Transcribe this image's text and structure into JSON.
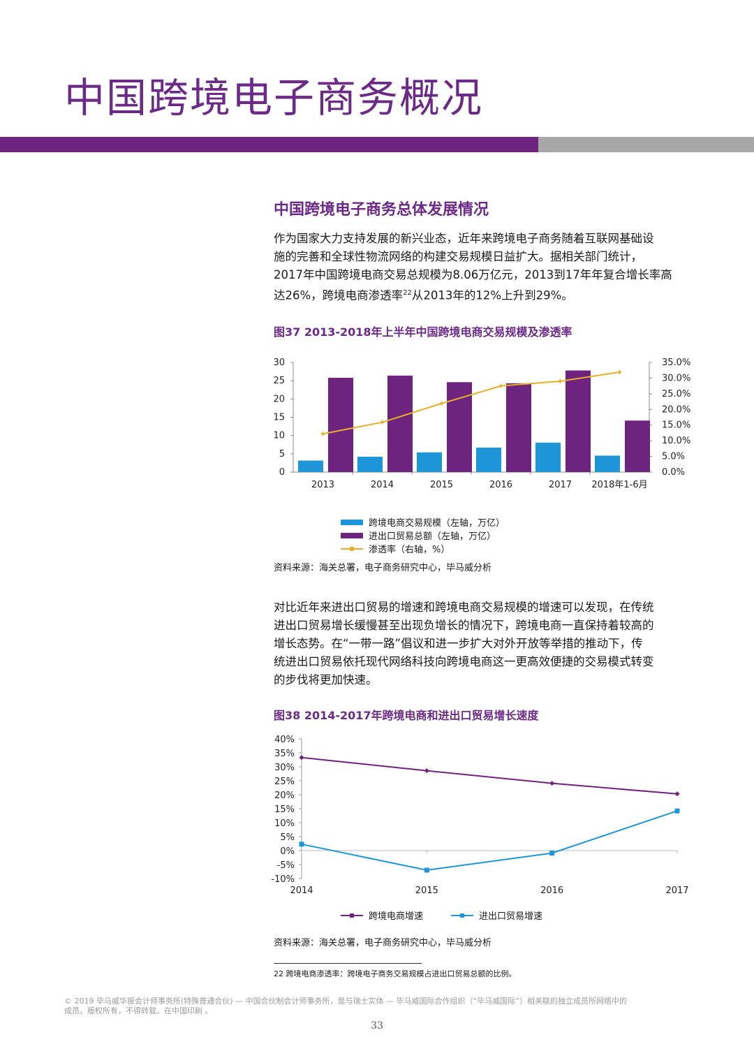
{
  "header": {
    "title": "中国跨境电子商务概况"
  },
  "section": {
    "heading": "中国跨境电子商务总体发展情况",
    "para1_lines": [
      "作为国家大力支持发展的新兴业态，近年来跨境电子商务随着互联网基础设",
      "施的完善和全球性物流网络的构建交易规模日益扩大。据相关部门统计，",
      "2017年中国跨境电商交易总规模为8.06万亿元，2013到17年年复合增长率高"
    ],
    "para1_last_before": "达26%，跨境电商渗透率",
    "para1_sup": "22",
    "para1_last_after": "从2013年的12%上升到29%。",
    "para2_lines": [
      "对比近年来进出口贸易的增速和跨境电商交易规模的增速可以发现，在传统",
      "进出口贸易增长缓慢甚至出现负增长的情况下，跨境电商一直保持着较高的",
      "增长态势。在“一带一路”倡议和进一步扩大对外开放等举措的推动下，传",
      "统进出口贸易依托现代网络科技向跨境电商这一更高效便捷的交易模式转变",
      "的步伐将更加快速。"
    ]
  },
  "fig37": {
    "title": "图37 2013-2018年上半年中国跨境电商交易规模及渗透率",
    "source": "资料来源：海关总署，电子商务研究中心，毕马威分析",
    "legend": [
      "跨境电商交易规模（左轴，万亿）",
      "进出口贸易总额（左轴，万亿）",
      "渗透率（右轴，%）"
    ]
  },
  "fig38": {
    "title": "图38 2014-2017年跨境电商和进出口贸易增长速度",
    "source": "资料来源：海关总署，电子商务研究中心，毕马威分析",
    "legend": [
      "跨境电商增速",
      "进出口贸易增速"
    ]
  },
  "footnote": "22  跨境电商渗透率：跨境电子商务交易规模占进出口贸易总额的比例。",
  "copyright_lines": [
    "© 2019 毕马威华振会计师事务所(特殊普通合伙) — 中国合伙制会计师事务所，是与瑞士实体 — 毕马威国际合作组织（“毕马威国际”）相关联的独立成员所网络中的",
    "成员。版权所有，不得转载。在中国印刷 。"
  ],
  "page_number": "33",
  "colors": {
    "purple": "#6e237f",
    "blue": "#1e95d6",
    "gold": "#e5b02a",
    "gray": "#a7a7a7"
  },
  "chart_data": [
    {
      "type": "bar",
      "title": "图37 2013-2018年上半年中国跨境电商交易规模及渗透率",
      "categories": [
        "2013",
        "2014",
        "2015",
        "2016",
        "2017",
        "2018年1-6月"
      ],
      "series": [
        {
          "name": "跨境电商交易规模（左轴，万亿）",
          "axis": "left",
          "type": "bar",
          "color": "#1e95d6",
          "values": [
            3.15,
            4.2,
            5.4,
            6.7,
            8.06,
            4.5
          ]
        },
        {
          "name": "进出口贸易总额（左轴，万亿）",
          "axis": "left",
          "type": "bar",
          "color": "#6e237f",
          "values": [
            25.8,
            26.4,
            24.6,
            24.3,
            27.8,
            14.1
          ]
        },
        {
          "name": "渗透率（右轴，%）",
          "axis": "right",
          "type": "line",
          "color": "#e5b02a",
          "values": [
            12.2,
            15.9,
            21.9,
            27.5,
            29.0,
            31.9
          ]
        }
      ],
      "y_left": {
        "min": 0,
        "max": 30,
        "ticks": [
          "0",
          "5",
          "10",
          "15",
          "20",
          "25",
          "30"
        ]
      },
      "y_right": {
        "min": 0,
        "max": 35,
        "ticks": [
          "0.0%",
          "5.0%",
          "10.0%",
          "15.0%",
          "20.0%",
          "25.0%",
          "30.0%",
          "35.0%"
        ]
      },
      "legend_position": "bottom"
    },
    {
      "type": "line",
      "title": "图38 2014-2017年跨境电商和进出口贸易增长速度",
      "categories": [
        "2014",
        "2015",
        "2016",
        "2017"
      ],
      "series": [
        {
          "name": "跨境电商增速",
          "color": "#6e237f",
          "marker": "diamond",
          "values": [
            33.3,
            28.6,
            24.1,
            20.3
          ]
        },
        {
          "name": "进出口贸易增速",
          "color": "#1e95d6",
          "marker": "square",
          "values": [
            2.3,
            -7.0,
            -0.9,
            14.2
          ]
        }
      ],
      "y": {
        "min": -10,
        "max": 40,
        "ticks": [
          "-10%",
          "-5%",
          "0%",
          "5%",
          "10%",
          "15%",
          "20%",
          "25%",
          "30%",
          "35%",
          "40%"
        ]
      },
      "legend_position": "bottom"
    }
  ]
}
